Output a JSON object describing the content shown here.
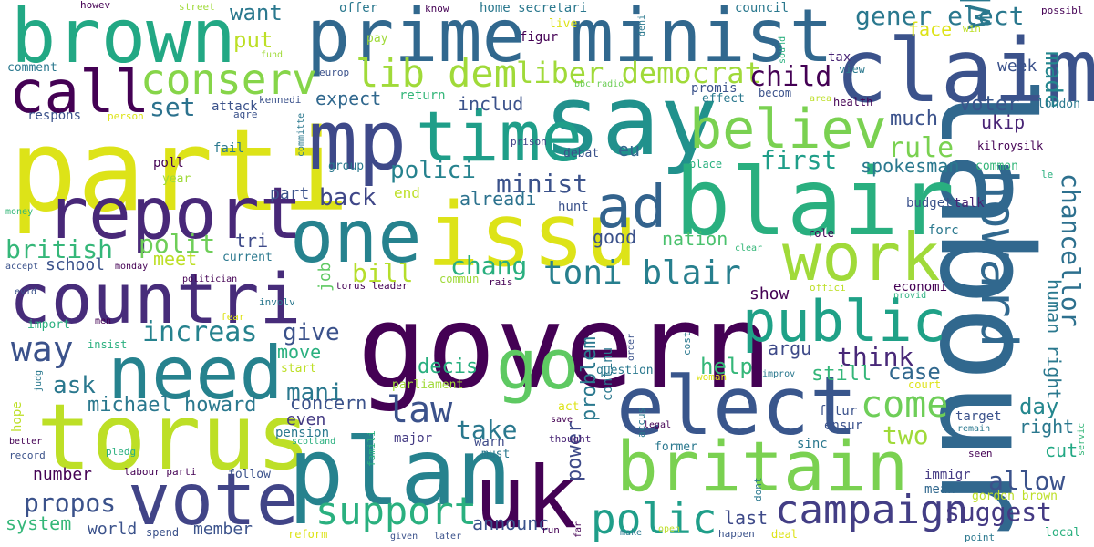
{
  "words": [
    {
      "text": "govern",
      "color": "#440154"
    },
    {
      "text": "labour",
      "color": "#31688e"
    },
    {
      "text": "parti",
      "color": "#dde318"
    },
    {
      "text": "say",
      "color": "#21918c"
    },
    {
      "text": "torus",
      "color": "#bddf26"
    },
    {
      "text": "plan",
      "color": "#26828e"
    },
    {
      "text": "blair",
      "color": "#29af7f"
    },
    {
      "text": "prime minist",
      "color": "#31688e"
    },
    {
      "text": "claim",
      "color": "#3b528b"
    },
    {
      "text": "mp",
      "color": "#3e4989"
    },
    {
      "text": "time",
      "color": "#1f9e89"
    },
    {
      "text": "issu",
      "color": "#dde318"
    },
    {
      "text": "one",
      "color": "#26828e"
    },
    {
      "text": "brown",
      "color": "#22a884"
    },
    {
      "text": "report",
      "color": "#482878"
    },
    {
      "text": "countri",
      "color": "#472c7a"
    },
    {
      "text": "need",
      "color": "#26828e"
    },
    {
      "text": "elect",
      "color": "#39568c"
    },
    {
      "text": "uk",
      "color": "#440154"
    },
    {
      "text": "vote",
      "color": "#414487"
    },
    {
      "text": "britain",
      "color": "#7ad151"
    },
    {
      "text": "work",
      "color": "#a0da39"
    },
    {
      "text": "go",
      "color": "#5ec962"
    },
    {
      "text": "public",
      "color": "#1fa187"
    },
    {
      "text": "call",
      "color": "#440154"
    },
    {
      "text": "howard",
      "color": "#31688e"
    },
    {
      "text": "ad",
      "color": "#33638d"
    },
    {
      "text": "believ",
      "color": "#7ad151"
    },
    {
      "text": "lib dem",
      "color": "#a0da39"
    },
    {
      "text": "conserv",
      "color": "#86d549"
    },
    {
      "text": "whether",
      "color": "#2a788e"
    },
    {
      "text": "chancellor",
      "color": "#2d708e"
    },
    {
      "text": "liber democrat",
      "color": "#a0da39"
    },
    {
      "text": "gener elect",
      "color": "#2a788e"
    },
    {
      "text": "toni blair",
      "color": "#277f8e"
    },
    {
      "text": "campaign",
      "color": "#433e85"
    },
    {
      "text": "support",
      "color": "#2ab07f"
    },
    {
      "text": "polic",
      "color": "#1f9e89"
    },
    {
      "text": "law",
      "color": "#3b528b"
    },
    {
      "text": "way",
      "color": "#3b528b"
    },
    {
      "text": "come",
      "color": "#6ece58"
    },
    {
      "text": "made",
      "color": "#24868e"
    },
    {
      "text": "child",
      "color": "#440154"
    },
    {
      "text": "human right",
      "color": "#2a788e"
    },
    {
      "text": "polit",
      "color": "#6ece58"
    },
    {
      "text": "british",
      "color": "#35b779"
    },
    {
      "text": "first",
      "color": "#1f9e89"
    },
    {
      "text": "rule",
      "color": "#7ad151"
    },
    {
      "text": "increas",
      "color": "#26828e"
    },
    {
      "text": "minist",
      "color": "#3b528b"
    },
    {
      "text": "set",
      "color": "#2c728e"
    },
    {
      "text": "put",
      "color": "#bddf26"
    },
    {
      "text": "want",
      "color": "#2a788e"
    },
    {
      "text": "bill",
      "color": "#b5de2b"
    },
    {
      "text": "chang",
      "color": "#29af7f"
    },
    {
      "text": "think",
      "color": "#482878"
    },
    {
      "text": "take",
      "color": "#2a788e"
    },
    {
      "text": "suggest",
      "color": "#443a83"
    },
    {
      "text": "give",
      "color": "#3b528b"
    },
    {
      "text": "polici",
      "color": "#26828e"
    },
    {
      "text": "propos",
      "color": "#3b528b"
    },
    {
      "text": "michael howard",
      "color": "#2a788e"
    },
    {
      "text": "back",
      "color": "#3f4788"
    },
    {
      "text": "help",
      "color": "#35b779"
    },
    {
      "text": "power",
      "color": "#3e4a89"
    },
    {
      "text": "allow",
      "color": "#3b528b"
    },
    {
      "text": "announc",
      "color": "#3b528b"
    },
    {
      "text": "two",
      "color": "#a0da39"
    },
    {
      "text": "case",
      "color": "#31688e"
    },
    {
      "text": "day",
      "color": "#24878e"
    },
    {
      "text": "last",
      "color": "#3e4a89"
    },
    {
      "text": "mani",
      "color": "#2a788e"
    },
    {
      "text": "argu",
      "color": "#3e4a89"
    },
    {
      "text": "ask",
      "color": "#2a788e"
    },
    {
      "text": "problem",
      "color": "#2a788e"
    },
    {
      "text": "ukip",
      "color": "#482475"
    },
    {
      "text": "cut",
      "color": "#22a884"
    },
    {
      "text": "meet",
      "color": "#bddf26"
    },
    {
      "text": "right",
      "color": "#2a788e"
    },
    {
      "text": "still",
      "color": "#34b679"
    },
    {
      "text": "spokesman",
      "color": "#2a788e"
    },
    {
      "text": "voter",
      "color": "#39568c"
    },
    {
      "text": "much",
      "color": "#3b528b"
    },
    {
      "text": "eu",
      "color": "#31688e"
    },
    {
      "text": "expect",
      "color": "#31688e"
    },
    {
      "text": "includ",
      "color": "#3b528b"
    },
    {
      "text": "decis",
      "color": "#29af7f"
    },
    {
      "text": "alreadi",
      "color": "#2c728e"
    },
    {
      "text": "nation",
      "color": "#4ac16d"
    },
    {
      "text": "good",
      "color": "#3b528b"
    },
    {
      "text": "show",
      "color": "#440154"
    },
    {
      "text": "tri",
      "color": "#3e4a89"
    },
    {
      "text": "move",
      "color": "#2ab07f"
    },
    {
      "text": "concern",
      "color": "#3b528b"
    },
    {
      "text": "even",
      "color": "#443a83"
    },
    {
      "text": "week",
      "color": "#3b528b"
    },
    {
      "text": "face",
      "color": "#dde318"
    },
    {
      "text": "number",
      "color": "#440154"
    },
    {
      "text": "world",
      "color": "#3b528b"
    },
    {
      "text": "system",
      "color": "#35b779"
    },
    {
      "text": "member",
      "color": "#3b528b"
    },
    {
      "text": "school",
      "color": "#3b528b"
    },
    {
      "text": "part",
      "color": "#3b528b"
    },
    {
      "text": "end",
      "color": "#bddf26"
    },
    {
      "text": "job",
      "color": "#5ec962"
    },
    {
      "text": "pension",
      "color": "#2a788e"
    },
    {
      "text": "continu",
      "color": "#2a788e"
    },
    {
      "text": "immigr",
      "color": "#443a83"
    },
    {
      "text": "economi",
      "color": "#440154"
    },
    {
      "text": "major",
      "color": "#443a83"
    },
    {
      "text": "warn",
      "color": "#3e4a89"
    },
    {
      "text": "prison",
      "color": "#414487"
    },
    {
      "text": "sinc",
      "color": "#2a788e"
    },
    {
      "text": "futur",
      "color": "#3b528b"
    },
    {
      "text": "ensur",
      "color": "#3b528b"
    },
    {
      "text": "mean",
      "color": "#31688e"
    },
    {
      "text": "gordon brown",
      "color": "#bddf26"
    },
    {
      "text": "target",
      "color": "#3b528b"
    },
    {
      "text": "budget",
      "color": "#3b528b"
    },
    {
      "text": "talk",
      "color": "#482475"
    },
    {
      "text": "forc",
      "color": "#2a788e"
    },
    {
      "text": "common",
      "color": "#34b679"
    },
    {
      "text": "kilroysilk",
      "color": "#440154"
    },
    {
      "text": "london",
      "color": "#2a788e"
    },
    {
      "text": "health",
      "color": "#440154"
    },
    {
      "text": "becom",
      "color": "#3b528b"
    },
    {
      "text": "effect",
      "color": "#2a788e"
    },
    {
      "text": "promis",
      "color": "#3b528b"
    },
    {
      "text": "council",
      "color": "#2a788e"
    },
    {
      "text": "tax",
      "color": "#482475"
    },
    {
      "text": "view",
      "color": "#2a788e"
    },
    {
      "text": "home secretari",
      "color": "#2a788e"
    },
    {
      "text": "figur",
      "color": "#440154"
    },
    {
      "text": "pay",
      "color": "#a0da39"
    },
    {
      "text": "live",
      "color": "#dde318"
    },
    {
      "text": "offer",
      "color": "#2a788e"
    },
    {
      "text": "know",
      "color": "#440154"
    },
    {
      "text": "europ",
      "color": "#3b528b"
    },
    {
      "text": "bbc radio",
      "color": "#6ece58"
    },
    {
      "text": "return",
      "color": "#34b679"
    },
    {
      "text": "debat",
      "color": "#3b528b"
    },
    {
      "text": "hunt",
      "color": "#3b528b"
    },
    {
      "text": "group",
      "color": "#2a788e"
    },
    {
      "text": "attack",
      "color": "#3b528b"
    },
    {
      "text": "agre",
      "color": "#3b528b"
    },
    {
      "text": "kennedi",
      "color": "#3b528b"
    },
    {
      "text": "fail",
      "color": "#2a788e"
    },
    {
      "text": "poll",
      "color": "#440154"
    },
    {
      "text": "year",
      "color": "#a0da39"
    },
    {
      "text": "respons",
      "color": "#3b528b"
    },
    {
      "text": "person",
      "color": "#dde318"
    },
    {
      "text": "comment",
      "color": "#2a788e"
    },
    {
      "text": "howev",
      "color": "#440154"
    },
    {
      "text": "street",
      "color": "#a0da39"
    },
    {
      "text": "fund",
      "color": "#a0da39"
    },
    {
      "text": "money",
      "color": "#35b779"
    },
    {
      "text": "accept",
      "color": "#3b528b"
    },
    {
      "text": "monday",
      "color": "#440154"
    },
    {
      "text": "politician",
      "color": "#440154"
    },
    {
      "text": "current",
      "color": "#2a788e"
    },
    {
      "text": "involv",
      "color": "#2a788e"
    },
    {
      "text": "torus leader",
      "color": "#440154"
    },
    {
      "text": "rais",
      "color": "#440154"
    },
    {
      "text": "commun",
      "color": "#a0da39"
    },
    {
      "text": "evid",
      "color": "#3b528b"
    },
    {
      "text": "fear",
      "color": "#dde318"
    },
    {
      "text": "import",
      "color": "#2ab07f"
    },
    {
      "text": "men",
      "color": "#440154"
    },
    {
      "text": "insist",
      "color": "#2ab07f"
    },
    {
      "text": "start",
      "color": "#bddf26"
    },
    {
      "text": "hope",
      "color": "#bddf26"
    },
    {
      "text": "judg",
      "color": "#2a788e"
    },
    {
      "text": "parliament",
      "color": "#a0da39"
    },
    {
      "text": "act",
      "color": "#dde318"
    },
    {
      "text": "save",
      "color": "#440154"
    },
    {
      "text": "thought",
      "color": "#482475"
    },
    {
      "text": "must",
      "color": "#2a788e"
    },
    {
      "text": "famili",
      "color": "#2ab07f"
    },
    {
      "text": "better",
      "color": "#440154"
    },
    {
      "text": "record",
      "color": "#3b528b"
    },
    {
      "text": "pledg",
      "color": "#2ab07f"
    },
    {
      "text": "scotland",
      "color": "#2ab07f"
    },
    {
      "text": "labour parti",
      "color": "#440154"
    },
    {
      "text": "follow",
      "color": "#3b528b"
    },
    {
      "text": "spend",
      "color": "#3b528b"
    },
    {
      "text": "reform",
      "color": "#dde318"
    },
    {
      "text": "given",
      "color": "#3b528b"
    },
    {
      "text": "later",
      "color": "#3b528b"
    },
    {
      "text": "run",
      "color": "#440154"
    },
    {
      "text": "far",
      "color": "#440154"
    },
    {
      "text": "make",
      "color": "#2a788e"
    },
    {
      "text": "open",
      "color": "#bddf26"
    },
    {
      "text": "happen",
      "color": "#3b528b"
    },
    {
      "text": "deal",
      "color": "#dde318"
    },
    {
      "text": "point",
      "color": "#2a788e"
    },
    {
      "text": "local",
      "color": "#2ab07f"
    },
    {
      "text": "seen",
      "color": "#440154"
    },
    {
      "text": "remain",
      "color": "#2a788e"
    },
    {
      "text": "servic",
      "color": "#34b679"
    },
    {
      "text": "le",
      "color": "#2ab07f"
    },
    {
      "text": "possibl",
      "color": "#440154"
    },
    {
      "text": "win",
      "color": "#bddf26"
    },
    {
      "text": "sound",
      "color": "#2ab07f"
    },
    {
      "text": "deni",
      "color": "#2a788e"
    },
    {
      "text": "area",
      "color": "#bddf26"
    },
    {
      "text": "role",
      "color": "#440154"
    },
    {
      "text": "offici",
      "color": "#bddf26"
    },
    {
      "text": "provid",
      "color": "#2ab07f"
    },
    {
      "text": "clear",
      "color": "#35b779"
    },
    {
      "text": "improv",
      "color": "#2a788e"
    },
    {
      "text": "cost",
      "color": "#2a788e"
    },
    {
      "text": "order",
      "color": "#3b528b"
    },
    {
      "text": "question",
      "color": "#2a788e"
    },
    {
      "text": "woman",
      "color": "#dde318"
    },
    {
      "text": "court",
      "color": "#dde318"
    },
    {
      "text": "dont",
      "color": "#2a788e"
    },
    {
      "text": "former",
      "color": "#2a788e"
    },
    {
      "text": "accus",
      "color": "#2a788e"
    },
    {
      "text": "legal",
      "color": "#440154"
    },
    {
      "text": "place",
      "color": "#2ab07f"
    },
    {
      "text": "committe",
      "color": "#2a788e"
    }
  ]
}
